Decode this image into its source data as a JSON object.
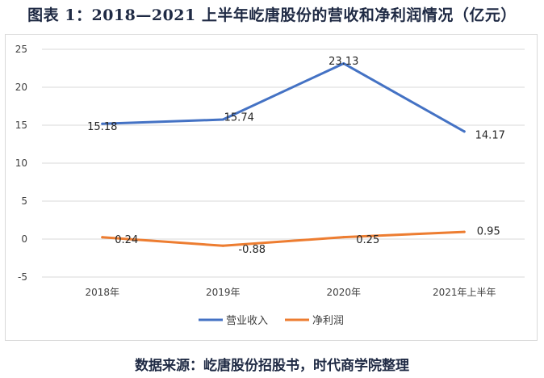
{
  "title": "图表 1：2018—2021 上半年屹唐股份的营收和净利润情况（亿元）",
  "source": "数据来源：屹唐股份招股书，时代商学院整理",
  "chart_data": {
    "type": "line",
    "categories": [
      "2018年",
      "2019年",
      "2020年",
      "2021年上半年"
    ],
    "series": [
      {
        "name": "营业收入",
        "values": [
          15.18,
          15.74,
          23.13,
          14.17
        ],
        "labels": [
          "15.18",
          "15.74",
          "23.13",
          "14.17"
        ],
        "color": "#4472c4"
      },
      {
        "name": "净利润",
        "values": [
          0.24,
          -0.88,
          0.25,
          0.95
        ],
        "labels": [
          "0.24",
          "-0.88",
          "0.25",
          "0.95"
        ],
        "color": "#ed7d31"
      }
    ],
    "yticks": [
      -5,
      0,
      5,
      10,
      15,
      20,
      25
    ],
    "ylim": [
      -5,
      25
    ],
    "grid": true,
    "legend_position": "bottom"
  }
}
